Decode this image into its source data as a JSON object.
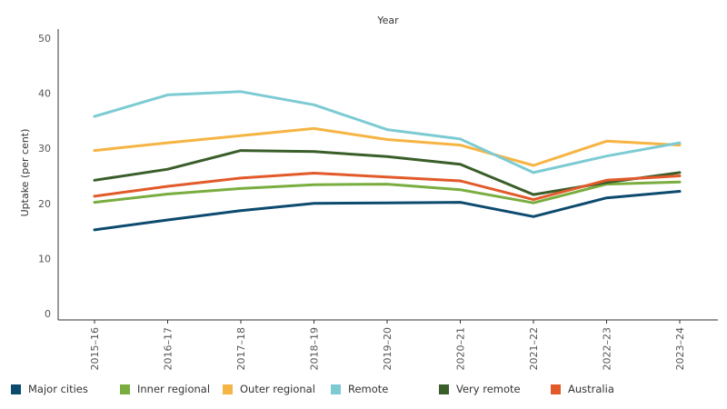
{
  "chart_data": {
    "type": "line",
    "title": "Year",
    "xlabel": "",
    "ylabel": "Uptake (per cent)",
    "ylim": [
      0,
      50
    ],
    "yticks": [
      0,
      10,
      20,
      30,
      40,
      50
    ],
    "grid": false,
    "legend_position": "bottom",
    "categories": [
      "2015–16",
      "2016–17",
      "2017–18",
      "2018–19",
      "2019–20",
      "2020–21",
      "2021–22",
      "2022–23",
      "2023–24"
    ],
    "series": [
      {
        "name": "Major cities",
        "color": "#0c4a6e",
        "values": [
          15.2,
          17.0,
          18.7,
          20.0,
          20.1,
          20.2,
          17.6,
          21.0,
          22.2
        ]
      },
      {
        "name": "Inner regional",
        "color": "#7aad3f",
        "values": [
          20.2,
          21.7,
          22.7,
          23.4,
          23.5,
          22.5,
          20.1,
          23.5,
          23.9
        ]
      },
      {
        "name": "Outer regional",
        "color": "#f6b443",
        "values": [
          29.6,
          31.0,
          32.3,
          33.6,
          31.6,
          30.6,
          26.9,
          31.3,
          30.6
        ]
      },
      {
        "name": "Remote",
        "color": "#7ccbd3",
        "values": [
          35.8,
          39.7,
          40.3,
          37.9,
          33.4,
          31.7,
          25.6,
          28.6,
          31.0
        ]
      },
      {
        "name": "Very remote",
        "color": "#3a5e2a",
        "values": [
          24.2,
          26.2,
          29.6,
          29.4,
          28.5,
          27.1,
          21.6,
          23.8,
          25.6
        ]
      },
      {
        "name": "Australia",
        "color": "#e25a2a",
        "values": [
          21.3,
          23.1,
          24.6,
          25.5,
          24.8,
          24.1,
          20.7,
          24.2,
          25.0
        ]
      }
    ]
  }
}
